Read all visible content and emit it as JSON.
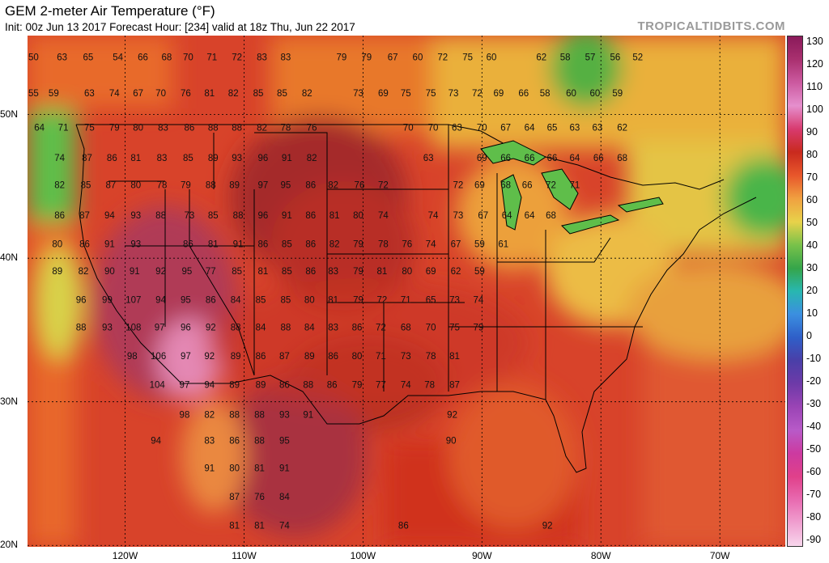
{
  "header": {
    "title": "GEM 2-meter Air Temperature (°F)",
    "subtitle": "Init: 00z Jun 13 2017   Forecast Hour: [234]   valid at 18z Thu, Jun 22 2017",
    "brand": "TROPICALTIDBITS.COM"
  },
  "axes": {
    "lat_labels": [
      "50N",
      "40N",
      "30N",
      "20N"
    ],
    "lat_values": [
      50,
      40,
      30,
      20
    ],
    "lon_labels": [
      "120W",
      "110W",
      "100W",
      "90W",
      "80W",
      "70W"
    ],
    "lon_values": [
      -120,
      -110,
      -100,
      -90,
      -80,
      -70
    ]
  },
  "colorbar": {
    "ticks": [
      "130",
      "120",
      "110",
      "100",
      "90",
      "80",
      "70",
      "60",
      "50",
      "40",
      "30",
      "20",
      "10",
      "0",
      "-10",
      "-20",
      "-30",
      "-40",
      "-50",
      "-60",
      "-70",
      "-80",
      "-90"
    ],
    "colors": [
      "#8a1a5a",
      "#a9306f",
      "#cc5aa0",
      "#e58fcd",
      "#d83a6e",
      "#c92a1e",
      "#e8572b",
      "#f0a040",
      "#e8d24a",
      "#79c24a",
      "#35a54a",
      "#28b7b0",
      "#3b8fe0",
      "#2f5fc8",
      "#4a3fa8",
      "#6e3aa8",
      "#9a44b5",
      "#b85ac8",
      "#cc3aa0",
      "#e0408a",
      "#e86ab0",
      "#f0a0d0",
      "#f8d6ec"
    ]
  },
  "temperature_labels": [
    {
      "lon": -127.7,
      "lat": 54.0,
      "v": "50"
    },
    {
      "lon": -125.3,
      "lat": 54.0,
      "v": "63"
    },
    {
      "lon": -123.1,
      "lat": 54.0,
      "v": "65"
    },
    {
      "lon": -120.6,
      "lat": 54.0,
      "v": "54"
    },
    {
      "lon": -118.5,
      "lat": 54.0,
      "v": "66"
    },
    {
      "lon": -116.5,
      "lat": 54.0,
      "v": "68"
    },
    {
      "lon": -114.7,
      "lat": 54.0,
      "v": "70"
    },
    {
      "lon": -112.7,
      "lat": 54.0,
      "v": "71"
    },
    {
      "lon": -110.6,
      "lat": 54.0,
      "v": "72"
    },
    {
      "lon": -108.5,
      "lat": 54.0,
      "v": "83"
    },
    {
      "lon": -106.5,
      "lat": 54.0,
      "v": "83"
    },
    {
      "lon": -101.8,
      "lat": 54.0,
      "v": "79"
    },
    {
      "lon": -99.7,
      "lat": 54.0,
      "v": "79"
    },
    {
      "lon": -97.5,
      "lat": 54.0,
      "v": "67"
    },
    {
      "lon": -95.4,
      "lat": 54.0,
      "v": "60"
    },
    {
      "lon": -93.3,
      "lat": 54.0,
      "v": "72"
    },
    {
      "lon": -91.2,
      "lat": 54.0,
      "v": "75"
    },
    {
      "lon": -89.2,
      "lat": 54.0,
      "v": "60"
    },
    {
      "lon": -85.0,
      "lat": 54.0,
      "v": "62"
    },
    {
      "lon": -83.0,
      "lat": 54.0,
      "v": "58"
    },
    {
      "lon": -80.9,
      "lat": 54.0,
      "v": "57"
    },
    {
      "lon": -78.8,
      "lat": 54.0,
      "v": "56"
    },
    {
      "lon": -76.9,
      "lat": 54.0,
      "v": "52"
    },
    {
      "lon": -127.7,
      "lat": 51.5,
      "v": "55"
    },
    {
      "lon": -126.0,
      "lat": 51.5,
      "v": "59"
    },
    {
      "lon": -123.0,
      "lat": 51.5,
      "v": "63"
    },
    {
      "lon": -120.9,
      "lat": 51.5,
      "v": "74"
    },
    {
      "lon": -118.9,
      "lat": 51.5,
      "v": "67"
    },
    {
      "lon": -117.0,
      "lat": 51.5,
      "v": "70"
    },
    {
      "lon": -114.9,
      "lat": 51.5,
      "v": "76"
    },
    {
      "lon": -112.9,
      "lat": 51.5,
      "v": "81"
    },
    {
      "lon": -110.9,
      "lat": 51.5,
      "v": "82"
    },
    {
      "lon": -108.8,
      "lat": 51.5,
      "v": "85"
    },
    {
      "lon": -106.8,
      "lat": 51.5,
      "v": "85"
    },
    {
      "lon": -104.7,
      "lat": 51.5,
      "v": "82"
    },
    {
      "lon": -100.4,
      "lat": 51.5,
      "v": "73"
    },
    {
      "lon": -98.3,
      "lat": 51.5,
      "v": "69"
    },
    {
      "lon": -96.4,
      "lat": 51.5,
      "v": "75"
    },
    {
      "lon": -94.3,
      "lat": 51.5,
      "v": "75"
    },
    {
      "lon": -92.4,
      "lat": 51.5,
      "v": "73"
    },
    {
      "lon": -90.4,
      "lat": 51.5,
      "v": "72"
    },
    {
      "lon": -88.6,
      "lat": 51.5,
      "v": "69"
    },
    {
      "lon": -86.5,
      "lat": 51.5,
      "v": "66"
    },
    {
      "lon": -84.7,
      "lat": 51.5,
      "v": "58"
    },
    {
      "lon": -82.5,
      "lat": 51.5,
      "v": "60"
    },
    {
      "lon": -80.5,
      "lat": 51.5,
      "v": "60"
    },
    {
      "lon": -78.6,
      "lat": 51.5,
      "v": "59"
    },
    {
      "lon": -127.2,
      "lat": 49.1,
      "v": "64"
    },
    {
      "lon": -125.2,
      "lat": 49.1,
      "v": "71"
    },
    {
      "lon": -123.0,
      "lat": 49.1,
      "v": "75"
    },
    {
      "lon": -120.9,
      "lat": 49.1,
      "v": "79"
    },
    {
      "lon": -118.9,
      "lat": 49.1,
      "v": "80"
    },
    {
      "lon": -116.8,
      "lat": 49.1,
      "v": "83"
    },
    {
      "lon": -114.6,
      "lat": 49.1,
      "v": "86"
    },
    {
      "lon": -112.6,
      "lat": 49.1,
      "v": "88"
    },
    {
      "lon": -110.6,
      "lat": 49.1,
      "v": "88"
    },
    {
      "lon": -108.5,
      "lat": 49.1,
      "v": "82"
    },
    {
      "lon": -106.5,
      "lat": 49.1,
      "v": "78"
    },
    {
      "lon": -104.3,
      "lat": 49.1,
      "v": "76"
    },
    {
      "lon": -96.2,
      "lat": 49.1,
      "v": "70"
    },
    {
      "lon": -94.1,
      "lat": 49.1,
      "v": "70"
    },
    {
      "lon": -92.1,
      "lat": 49.1,
      "v": "63"
    },
    {
      "lon": -90.0,
      "lat": 49.1,
      "v": "70"
    },
    {
      "lon": -88.0,
      "lat": 49.1,
      "v": "67"
    },
    {
      "lon": -86.0,
      "lat": 49.1,
      "v": "64"
    },
    {
      "lon": -84.1,
      "lat": 49.1,
      "v": "65"
    },
    {
      "lon": -82.2,
      "lat": 49.1,
      "v": "63"
    },
    {
      "lon": -80.3,
      "lat": 49.1,
      "v": "63"
    },
    {
      "lon": -78.2,
      "lat": 49.1,
      "v": "62"
    },
    {
      "lon": -125.5,
      "lat": 47.0,
      "v": "74"
    },
    {
      "lon": -123.2,
      "lat": 47.0,
      "v": "87"
    },
    {
      "lon": -121.1,
      "lat": 47.0,
      "v": "86"
    },
    {
      "lon": -119.1,
      "lat": 47.0,
      "v": "81"
    },
    {
      "lon": -116.9,
      "lat": 47.0,
      "v": "83"
    },
    {
      "lon": -114.7,
      "lat": 47.0,
      "v": "85"
    },
    {
      "lon": -112.6,
      "lat": 47.0,
      "v": "89"
    },
    {
      "lon": -110.6,
      "lat": 47.0,
      "v": "93"
    },
    {
      "lon": -108.4,
      "lat": 47.0,
      "v": "96"
    },
    {
      "lon": -106.4,
      "lat": 47.0,
      "v": "91"
    },
    {
      "lon": -104.3,
      "lat": 47.0,
      "v": "82"
    },
    {
      "lon": -94.5,
      "lat": 47.0,
      "v": "63"
    },
    {
      "lon": -90.0,
      "lat": 47.0,
      "v": "69"
    },
    {
      "lon": -88.0,
      "lat": 47.0,
      "v": "66"
    },
    {
      "lon": -86.0,
      "lat": 47.0,
      "v": "66"
    },
    {
      "lon": -84.1,
      "lat": 47.0,
      "v": "66"
    },
    {
      "lon": -82.2,
      "lat": 47.0,
      "v": "64"
    },
    {
      "lon": -80.2,
      "lat": 47.0,
      "v": "66"
    },
    {
      "lon": -78.2,
      "lat": 47.0,
      "v": "68"
    },
    {
      "lon": -125.5,
      "lat": 45.1,
      "v": "82"
    },
    {
      "lon": -123.3,
      "lat": 45.1,
      "v": "85"
    },
    {
      "lon": -121.2,
      "lat": 45.1,
      "v": "87"
    },
    {
      "lon": -119.1,
      "lat": 45.1,
      "v": "80"
    },
    {
      "lon": -116.9,
      "lat": 45.1,
      "v": "78"
    },
    {
      "lon": -114.9,
      "lat": 45.1,
      "v": "79"
    },
    {
      "lon": -112.8,
      "lat": 45.1,
      "v": "88"
    },
    {
      "lon": -110.8,
      "lat": 45.1,
      "v": "89"
    },
    {
      "lon": -108.4,
      "lat": 45.1,
      "v": "97"
    },
    {
      "lon": -106.5,
      "lat": 45.1,
      "v": "95"
    },
    {
      "lon": -104.4,
      "lat": 45.1,
      "v": "86"
    },
    {
      "lon": -102.5,
      "lat": 45.1,
      "v": "82"
    },
    {
      "lon": -100.3,
      "lat": 45.1,
      "v": "76"
    },
    {
      "lon": -98.3,
      "lat": 45.1,
      "v": "72"
    },
    {
      "lon": -92.0,
      "lat": 45.1,
      "v": "72"
    },
    {
      "lon": -90.2,
      "lat": 45.1,
      "v": "69"
    },
    {
      "lon": -88.0,
      "lat": 45.1,
      "v": "68"
    },
    {
      "lon": -86.2,
      "lat": 45.1,
      "v": "66"
    },
    {
      "lon": -84.2,
      "lat": 45.1,
      "v": "72"
    },
    {
      "lon": -82.2,
      "lat": 45.1,
      "v": "71"
    },
    {
      "lon": -125.5,
      "lat": 43.0,
      "v": "86"
    },
    {
      "lon": -123.4,
      "lat": 43.0,
      "v": "87"
    },
    {
      "lon": -121.3,
      "lat": 43.0,
      "v": "94"
    },
    {
      "lon": -119.1,
      "lat": 43.0,
      "v": "93"
    },
    {
      "lon": -117.0,
      "lat": 43.0,
      "v": "88"
    },
    {
      "lon": -114.6,
      "lat": 43.0,
      "v": "73"
    },
    {
      "lon": -112.6,
      "lat": 43.0,
      "v": "85"
    },
    {
      "lon": -110.5,
      "lat": 43.0,
      "v": "88"
    },
    {
      "lon": -108.4,
      "lat": 43.0,
      "v": "96"
    },
    {
      "lon": -106.4,
      "lat": 43.0,
      "v": "91"
    },
    {
      "lon": -104.4,
      "lat": 43.0,
      "v": "86"
    },
    {
      "lon": -102.4,
      "lat": 43.0,
      "v": "81"
    },
    {
      "lon": -100.4,
      "lat": 43.0,
      "v": "80"
    },
    {
      "lon": -98.3,
      "lat": 43.0,
      "v": "74"
    },
    {
      "lon": -94.1,
      "lat": 43.0,
      "v": "74"
    },
    {
      "lon": -92.0,
      "lat": 43.0,
      "v": "73"
    },
    {
      "lon": -89.9,
      "lat": 43.0,
      "v": "67"
    },
    {
      "lon": -87.9,
      "lat": 43.0,
      "v": "64"
    },
    {
      "lon": -86.0,
      "lat": 43.0,
      "v": "64"
    },
    {
      "lon": -84.2,
      "lat": 43.0,
      "v": "68"
    },
    {
      "lon": -125.7,
      "lat": 41.0,
      "v": "80"
    },
    {
      "lon": -123.4,
      "lat": 41.0,
      "v": "86"
    },
    {
      "lon": -121.3,
      "lat": 41.0,
      "v": "91"
    },
    {
      "lon": -119.1,
      "lat": 41.0,
      "v": "93"
    },
    {
      "lon": -114.7,
      "lat": 41.0,
      "v": "86"
    },
    {
      "lon": -112.6,
      "lat": 41.0,
      "v": "81"
    },
    {
      "lon": -110.5,
      "lat": 41.0,
      "v": "91"
    },
    {
      "lon": -108.4,
      "lat": 41.0,
      "v": "86"
    },
    {
      "lon": -106.4,
      "lat": 41.0,
      "v": "85"
    },
    {
      "lon": -104.4,
      "lat": 41.0,
      "v": "86"
    },
    {
      "lon": -102.4,
      "lat": 41.0,
      "v": "82"
    },
    {
      "lon": -100.4,
      "lat": 41.0,
      "v": "79"
    },
    {
      "lon": -98.3,
      "lat": 41.0,
      "v": "78"
    },
    {
      "lon": -96.3,
      "lat": 41.0,
      "v": "76"
    },
    {
      "lon": -94.3,
      "lat": 41.0,
      "v": "74"
    },
    {
      "lon": -92.2,
      "lat": 41.0,
      "v": "67"
    },
    {
      "lon": -90.2,
      "lat": 41.0,
      "v": "59"
    },
    {
      "lon": -88.2,
      "lat": 41.0,
      "v": "61"
    },
    {
      "lon": -125.7,
      "lat": 39.1,
      "v": "89"
    },
    {
      "lon": -123.5,
      "lat": 39.1,
      "v": "82"
    },
    {
      "lon": -121.3,
      "lat": 39.1,
      "v": "90"
    },
    {
      "lon": -119.2,
      "lat": 39.1,
      "v": "91"
    },
    {
      "lon": -117.0,
      "lat": 39.1,
      "v": "92"
    },
    {
      "lon": -114.8,
      "lat": 39.1,
      "v": "95"
    },
    {
      "lon": -112.8,
      "lat": 39.1,
      "v": "77"
    },
    {
      "lon": -110.6,
      "lat": 39.1,
      "v": "85"
    },
    {
      "lon": -108.4,
      "lat": 39.1,
      "v": "81"
    },
    {
      "lon": -106.4,
      "lat": 39.1,
      "v": "85"
    },
    {
      "lon": -104.4,
      "lat": 39.1,
      "v": "86"
    },
    {
      "lon": -102.5,
      "lat": 39.1,
      "v": "83"
    },
    {
      "lon": -100.4,
      "lat": 39.1,
      "v": "79"
    },
    {
      "lon": -98.4,
      "lat": 39.1,
      "v": "81"
    },
    {
      "lon": -96.3,
      "lat": 39.1,
      "v": "80"
    },
    {
      "lon": -94.3,
      "lat": 39.1,
      "v": "69"
    },
    {
      "lon": -92.2,
      "lat": 39.1,
      "v": "62"
    },
    {
      "lon": -90.2,
      "lat": 39.1,
      "v": "59"
    },
    {
      "lon": -123.7,
      "lat": 37.1,
      "v": "96"
    },
    {
      "lon": -121.5,
      "lat": 37.1,
      "v": "99"
    },
    {
      "lon": -119.3,
      "lat": 37.1,
      "v": "107"
    },
    {
      "lon": -117.0,
      "lat": 37.1,
      "v": "94"
    },
    {
      "lon": -114.9,
      "lat": 37.1,
      "v": "95"
    },
    {
      "lon": -112.8,
      "lat": 37.1,
      "v": "86"
    },
    {
      "lon": -110.7,
      "lat": 37.1,
      "v": "84"
    },
    {
      "lon": -108.6,
      "lat": 37.1,
      "v": "85"
    },
    {
      "lon": -106.5,
      "lat": 37.1,
      "v": "85"
    },
    {
      "lon": -104.5,
      "lat": 37.1,
      "v": "80"
    },
    {
      "lon": -102.5,
      "lat": 37.1,
      "v": "81"
    },
    {
      "lon": -100.4,
      "lat": 37.1,
      "v": "79"
    },
    {
      "lon": -98.4,
      "lat": 37.1,
      "v": "72"
    },
    {
      "lon": -96.4,
      "lat": 37.1,
      "v": "71"
    },
    {
      "lon": -94.3,
      "lat": 37.1,
      "v": "65"
    },
    {
      "lon": -92.3,
      "lat": 37.1,
      "v": "73"
    },
    {
      "lon": -90.3,
      "lat": 37.1,
      "v": "74"
    },
    {
      "lon": -123.7,
      "lat": 35.2,
      "v": "88"
    },
    {
      "lon": -121.5,
      "lat": 35.2,
      "v": "93"
    },
    {
      "lon": -119.3,
      "lat": 35.2,
      "v": "108"
    },
    {
      "lon": -117.1,
      "lat": 35.2,
      "v": "97"
    },
    {
      "lon": -114.9,
      "lat": 35.2,
      "v": "96"
    },
    {
      "lon": -112.8,
      "lat": 35.2,
      "v": "92"
    },
    {
      "lon": -110.7,
      "lat": 35.2,
      "v": "88"
    },
    {
      "lon": -108.6,
      "lat": 35.2,
      "v": "84"
    },
    {
      "lon": -106.5,
      "lat": 35.2,
      "v": "88"
    },
    {
      "lon": -104.5,
      "lat": 35.2,
      "v": "84"
    },
    {
      "lon": -102.5,
      "lat": 35.2,
      "v": "83"
    },
    {
      "lon": -100.5,
      "lat": 35.2,
      "v": "86"
    },
    {
      "lon": -98.5,
      "lat": 35.2,
      "v": "72"
    },
    {
      "lon": -96.4,
      "lat": 35.2,
      "v": "68"
    },
    {
      "lon": -94.3,
      "lat": 35.2,
      "v": "70"
    },
    {
      "lon": -92.3,
      "lat": 35.2,
      "v": "75"
    },
    {
      "lon": -90.3,
      "lat": 35.2,
      "v": "79"
    },
    {
      "lon": -119.4,
      "lat": 33.2,
      "v": "98"
    },
    {
      "lon": -117.2,
      "lat": 33.2,
      "v": "106"
    },
    {
      "lon": -114.9,
      "lat": 33.2,
      "v": "97"
    },
    {
      "lon": -112.9,
      "lat": 33.2,
      "v": "92"
    },
    {
      "lon": -110.7,
      "lat": 33.2,
      "v": "89"
    },
    {
      "lon": -108.6,
      "lat": 33.2,
      "v": "86"
    },
    {
      "lon": -106.6,
      "lat": 33.2,
      "v": "87"
    },
    {
      "lon": -104.5,
      "lat": 33.2,
      "v": "89"
    },
    {
      "lon": -102.5,
      "lat": 33.2,
      "v": "86"
    },
    {
      "lon": -100.5,
      "lat": 33.2,
      "v": "80"
    },
    {
      "lon": -98.5,
      "lat": 33.2,
      "v": "71"
    },
    {
      "lon": -96.4,
      "lat": 33.2,
      "v": "73"
    },
    {
      "lon": -94.3,
      "lat": 33.2,
      "v": "78"
    },
    {
      "lon": -92.3,
      "lat": 33.2,
      "v": "81"
    },
    {
      "lon": -117.3,
      "lat": 31.2,
      "v": "104"
    },
    {
      "lon": -115.0,
      "lat": 31.2,
      "v": "97"
    },
    {
      "lon": -112.9,
      "lat": 31.2,
      "v": "94"
    },
    {
      "lon": -110.8,
      "lat": 31.2,
      "v": "89"
    },
    {
      "lon": -108.6,
      "lat": 31.2,
      "v": "89"
    },
    {
      "lon": -106.6,
      "lat": 31.2,
      "v": "86"
    },
    {
      "lon": -104.6,
      "lat": 31.2,
      "v": "88"
    },
    {
      "lon": -102.6,
      "lat": 31.2,
      "v": "86"
    },
    {
      "lon": -100.5,
      "lat": 31.2,
      "v": "79"
    },
    {
      "lon": -98.5,
      "lat": 31.2,
      "v": "77"
    },
    {
      "lon": -96.4,
      "lat": 31.2,
      "v": "74"
    },
    {
      "lon": -94.4,
      "lat": 31.2,
      "v": "78"
    },
    {
      "lon": -92.3,
      "lat": 31.2,
      "v": "87"
    },
    {
      "lon": -115.0,
      "lat": 29.1,
      "v": "98"
    },
    {
      "lon": -112.9,
      "lat": 29.1,
      "v": "82"
    },
    {
      "lon": -110.8,
      "lat": 29.1,
      "v": "88"
    },
    {
      "lon": -108.7,
      "lat": 29.1,
      "v": "88"
    },
    {
      "lon": -106.6,
      "lat": 29.1,
      "v": "93"
    },
    {
      "lon": -104.6,
      "lat": 29.1,
      "v": "91"
    },
    {
      "lon": -92.5,
      "lat": 29.1,
      "v": "92"
    },
    {
      "lon": -117.4,
      "lat": 27.3,
      "v": "94"
    },
    {
      "lon": -112.9,
      "lat": 27.3,
      "v": "83"
    },
    {
      "lon": -110.8,
      "lat": 27.3,
      "v": "86"
    },
    {
      "lon": -108.7,
      "lat": 27.3,
      "v": "88"
    },
    {
      "lon": -106.6,
      "lat": 27.3,
      "v": "95"
    },
    {
      "lon": -92.6,
      "lat": 27.3,
      "v": "90"
    },
    {
      "lon": -112.9,
      "lat": 25.4,
      "v": "91"
    },
    {
      "lon": -110.8,
      "lat": 25.4,
      "v": "80"
    },
    {
      "lon": -108.7,
      "lat": 25.4,
      "v": "81"
    },
    {
      "lon": -106.6,
      "lat": 25.4,
      "v": "91"
    },
    {
      "lon": -110.8,
      "lat": 23.4,
      "v": "87"
    },
    {
      "lon": -108.7,
      "lat": 23.4,
      "v": "76"
    },
    {
      "lon": -106.6,
      "lat": 23.4,
      "v": "84"
    },
    {
      "lon": -110.8,
      "lat": 21.4,
      "v": "81"
    },
    {
      "lon": -108.7,
      "lat": 21.4,
      "v": "81"
    },
    {
      "lon": -106.6,
      "lat": 21.4,
      "v": "74"
    },
    {
      "lon": -96.6,
      "lat": 21.4,
      "v": "86"
    },
    {
      "lon": -84.5,
      "lat": 21.4,
      "v": "92"
    }
  ]
}
